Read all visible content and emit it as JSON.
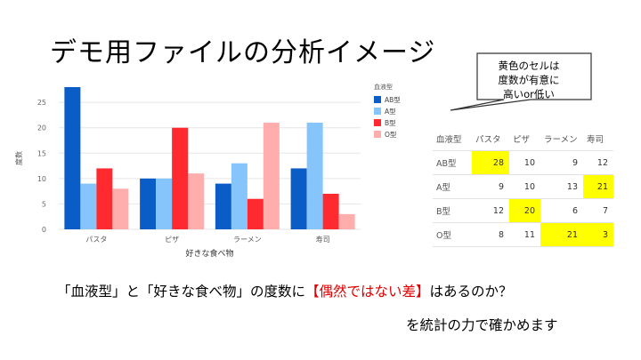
{
  "slide": {
    "title": "デモ用ファイルの分析イメージ",
    "callout": [
      "黄色のセルは",
      "度数が有意に",
      "高いor低い"
    ],
    "bottom_line_pre": "「血液型」と「好きな食べ物」の度数に",
    "bottom_line_red": "【偶然ではない差】",
    "bottom_line_post": "はあるのか？",
    "bottom_line2": "を統計の力で確かめます"
  },
  "chart_data": [
    {
      "type": "bar",
      "categories": [
        "パスタ",
        "ピザ",
        "ラーメン",
        "寿司"
      ],
      "series": [
        {
          "name": "AB型",
          "values": [
            28,
            10,
            9,
            12
          ],
          "color": "#0a5cc7"
        },
        {
          "name": "A型",
          "values": [
            9,
            10,
            13,
            21
          ],
          "color": "#86c5fb"
        },
        {
          "name": "B型",
          "values": [
            12,
            20,
            6,
            7
          ],
          "color": "#ff2a2f"
        },
        {
          "name": "O型",
          "values": [
            8,
            11,
            21,
            3
          ],
          "color": "#ffadad"
        }
      ],
      "xlabel": "好きな食べ物",
      "ylabel": "度数",
      "legend_title": "血液型",
      "legend_position": "right",
      "ylim": [
        0,
        28
      ],
      "yticks": [
        0,
        5,
        10,
        15,
        20,
        25
      ],
      "grid": true
    },
    {
      "type": "table",
      "header": [
        "血液型",
        "パスタ",
        "ピザ",
        "ラーメン",
        "寿司"
      ],
      "rows": [
        {
          "label": "AB型",
          "values": [
            28,
            10,
            9,
            12
          ],
          "highlight": [
            true,
            false,
            false,
            false
          ]
        },
        {
          "label": "A型",
          "values": [
            9,
            10,
            13,
            21
          ],
          "highlight": [
            false,
            false,
            false,
            true
          ]
        },
        {
          "label": "B型",
          "values": [
            12,
            20,
            6,
            7
          ],
          "highlight": [
            false,
            true,
            false,
            false
          ]
        },
        {
          "label": "O型",
          "values": [
            8,
            11,
            21,
            3
          ],
          "highlight": [
            false,
            false,
            true,
            true
          ]
        }
      ],
      "highlight_color": "#ffff00"
    }
  ]
}
